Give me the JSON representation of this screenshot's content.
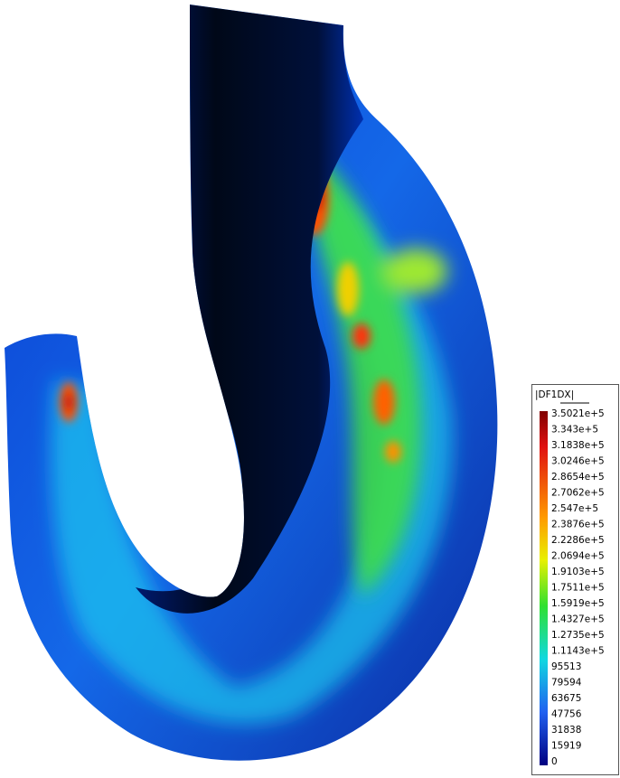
{
  "legend": {
    "title": "|DF1DX|",
    "labels": [
      "3.5021e+5",
      "3.343e+5",
      "3.1838e+5",
      "3.0246e+5",
      "2.8654e+5",
      "2.7062e+5",
      "2.547e+5",
      "2.3876e+5",
      "2.2286e+5",
      "2.0694e+5",
      "1.9103e+5",
      "1.7511e+5",
      "1.5919e+5",
      "1.4327e+5",
      "1.2735e+5",
      "1.1143e+5",
      "95513",
      "79594",
      "63675",
      "47756",
      "31838",
      "15919",
      "0"
    ]
  }
}
